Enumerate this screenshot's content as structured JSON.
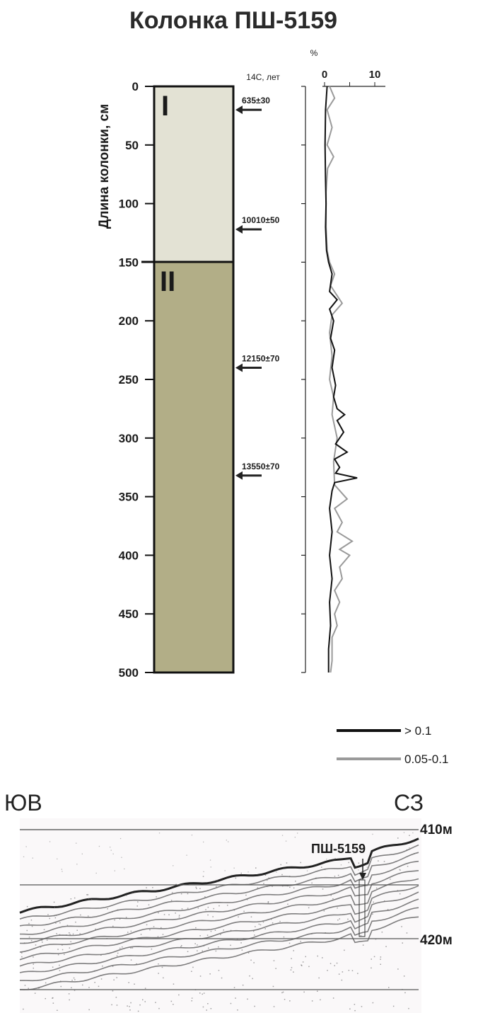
{
  "title": "Колонка ПШ-5159",
  "core_column": {
    "ylabel": "Длина колонки, см",
    "depth_ticks": [
      "0",
      "50",
      "100",
      "150",
      "200",
      "250",
      "300",
      "350",
      "400",
      "450",
      "500"
    ],
    "depth_range_cm": [
      0,
      500
    ],
    "units": [
      {
        "label": "I",
        "top_cm": 0,
        "bottom_cm": 150,
        "color": "#e3e2d4"
      },
      {
        "label": "II",
        "top_cm": 150,
        "bottom_cm": 500,
        "color": "#b2ae87"
      }
    ],
    "dates_header": "14С, лет",
    "dates": [
      {
        "depth_cm": 20,
        "label": "635±30"
      },
      {
        "depth_cm": 122,
        "label": "10010±50"
      },
      {
        "depth_cm": 240,
        "label": "12150±70"
      },
      {
        "depth_cm": 332,
        "label": "13550±70"
      }
    ]
  },
  "chart_data": {
    "type": "line",
    "xlabel": "%",
    "xticks": [
      "0",
      "10"
    ],
    "xlim": [
      0,
      10
    ],
    "ylim": [
      0,
      500
    ],
    "y_axis": "depth, cm",
    "series": [
      {
        "name": "> 0.1",
        "color": "#111111",
        "points": [
          [
            0.5,
            0
          ],
          [
            0.2,
            20
          ],
          [
            0.1,
            50
          ],
          [
            0.2,
            80
          ],
          [
            0.3,
            100
          ],
          [
            0.2,
            120
          ],
          [
            0.4,
            140
          ],
          [
            0.8,
            150
          ],
          [
            1.5,
            160
          ],
          [
            1.0,
            175
          ],
          [
            2.5,
            182
          ],
          [
            1.0,
            190
          ],
          [
            1.8,
            200
          ],
          [
            1.2,
            215
          ],
          [
            2.0,
            225
          ],
          [
            1.5,
            240
          ],
          [
            2.2,
            255
          ],
          [
            1.8,
            265
          ],
          [
            2.5,
            275
          ],
          [
            4.0,
            280
          ],
          [
            2.5,
            285
          ],
          [
            3.8,
            295
          ],
          [
            2.2,
            305
          ],
          [
            4.5,
            312
          ],
          [
            2.0,
            318
          ],
          [
            3.0,
            325
          ],
          [
            2.2,
            330
          ],
          [
            6.5,
            334
          ],
          [
            2.0,
            338
          ],
          [
            1.5,
            345
          ],
          [
            1.0,
            360
          ],
          [
            1.5,
            380
          ],
          [
            1.0,
            400
          ],
          [
            1.5,
            420
          ],
          [
            1.0,
            440
          ],
          [
            1.2,
            460
          ],
          [
            0.8,
            480
          ],
          [
            0.8,
            500
          ]
        ]
      },
      {
        "name": "0.05-0.1",
        "color": "#9a9a9a",
        "points": [
          [
            1.0,
            0
          ],
          [
            2.0,
            10
          ],
          [
            0.5,
            20
          ],
          [
            1.5,
            35
          ],
          [
            0.5,
            50
          ],
          [
            1.8,
            60
          ],
          [
            0.6,
            70
          ],
          [
            0.3,
            90
          ],
          [
            0.3,
            120
          ],
          [
            0.5,
            140
          ],
          [
            1.0,
            150
          ],
          [
            2.0,
            160
          ],
          [
            1.2,
            170
          ],
          [
            3.5,
            185
          ],
          [
            1.5,
            195
          ],
          [
            1.0,
            210
          ],
          [
            1.5,
            230
          ],
          [
            1.0,
            250
          ],
          [
            1.8,
            265
          ],
          [
            1.5,
            280
          ],
          [
            2.5,
            300
          ],
          [
            1.8,
            320
          ],
          [
            2.0,
            340
          ],
          [
            4.5,
            352
          ],
          [
            2.0,
            360
          ],
          [
            3.5,
            372
          ],
          [
            2.5,
            380
          ],
          [
            5.5,
            388
          ],
          [
            3.0,
            395
          ],
          [
            5.0,
            400
          ],
          [
            3.0,
            410
          ],
          [
            3.5,
            420
          ],
          [
            2.0,
            430
          ],
          [
            3.0,
            440
          ],
          [
            2.0,
            450
          ],
          [
            2.5,
            460
          ],
          [
            1.5,
            470
          ],
          [
            1.5,
            490
          ],
          [
            1.2,
            500
          ]
        ]
      }
    ]
  },
  "legend": {
    "items": [
      {
        "label": "> 0.1",
        "color": "#111111"
      },
      {
        "label": "0.05-0.1",
        "color": "#9a9a9a"
      }
    ]
  },
  "profile": {
    "left_label": "ЮВ",
    "right_label": "СЗ",
    "station_label": "ПШ-5159",
    "depth_labels": [
      "410м",
      "420м"
    ]
  }
}
